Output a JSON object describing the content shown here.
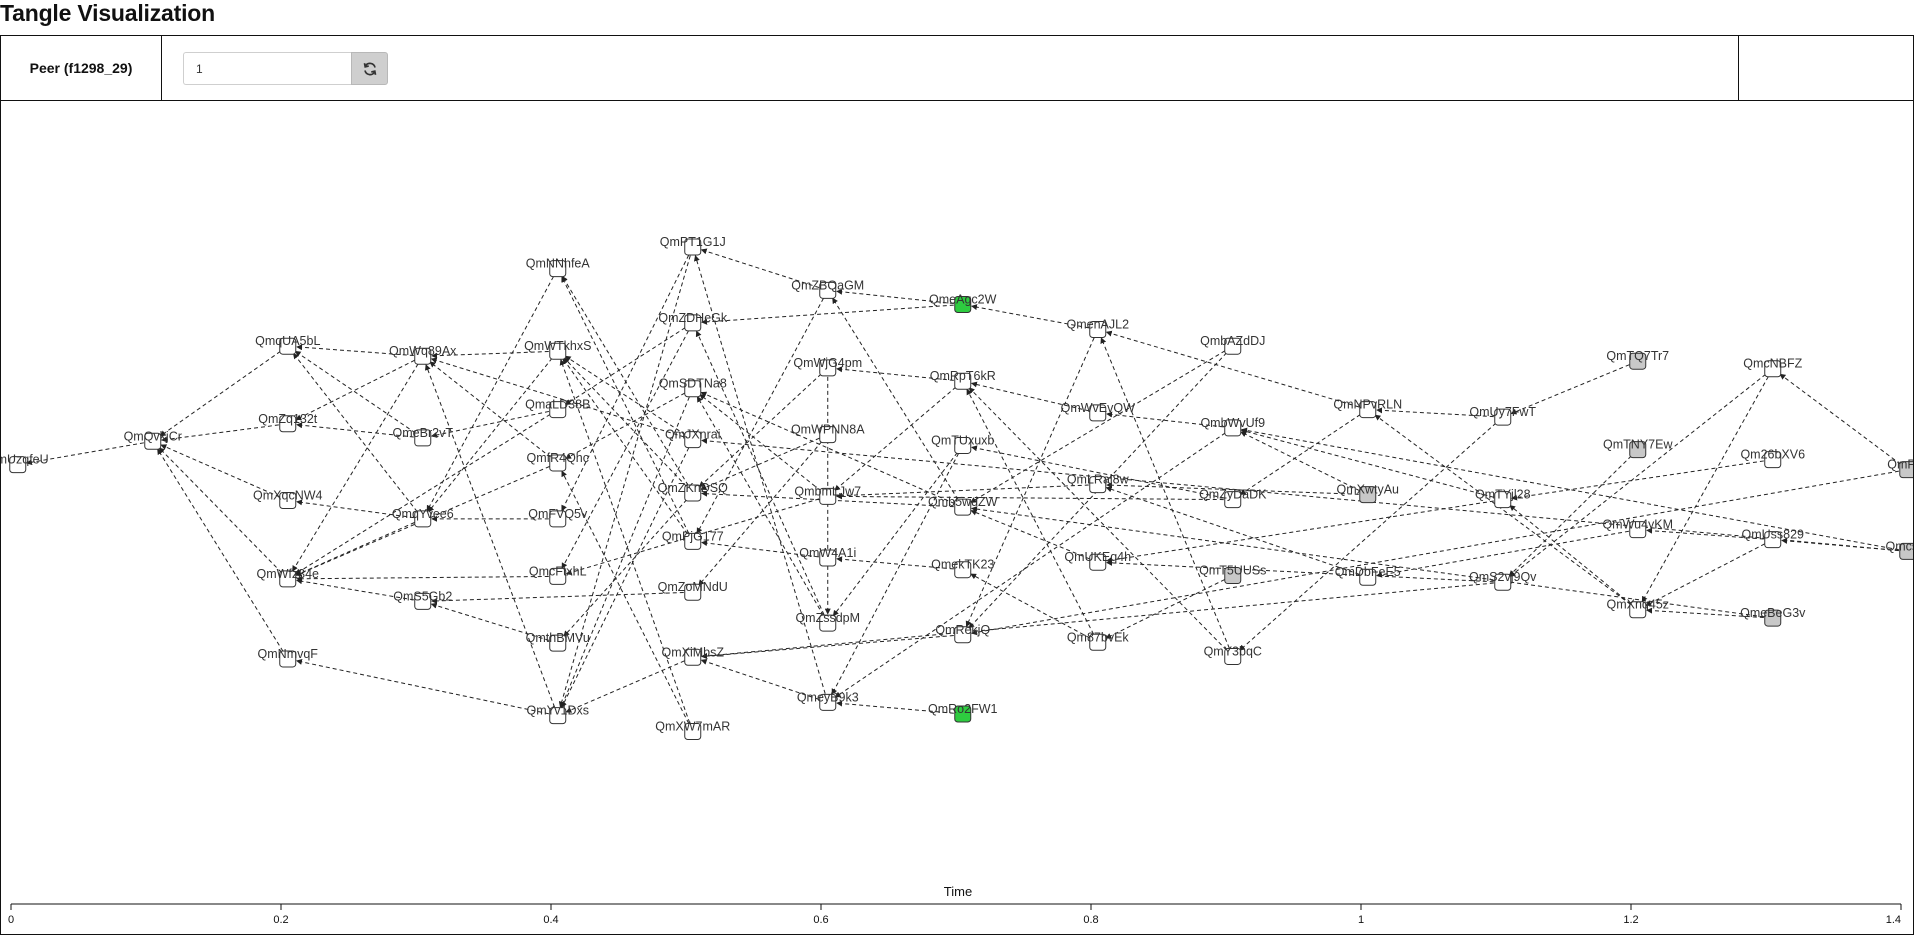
{
  "header": {
    "title": "Tangle Visualization"
  },
  "toolbar": {
    "peer_label": "Peer (f1298_29)",
    "peer_input_value": "1",
    "refresh_icon": "refresh-icon"
  },
  "colors": {
    "default_node": "#ffffff",
    "confirmed_node": "#2ecc40",
    "tip_node": "#c8c8c8",
    "edge": "#222222"
  },
  "axis": {
    "title": "Time",
    "range": [
      0,
      1.4
    ],
    "ticks": [
      "0",
      "0.2",
      "0.4",
      "0.6",
      "0.8",
      "1",
      "1.2",
      "1.4"
    ]
  },
  "chart_data": {
    "type": "network",
    "x_axis": "Time",
    "nodes": [
      {
        "id": "n1",
        "label": "QmUzqfeU",
        "time": 0.005,
        "y": 0.436,
        "fill": "white"
      },
      {
        "id": "n2",
        "label": "QmQvkjCr",
        "time": 0.105,
        "y": 0.408,
        "fill": "white"
      },
      {
        "id": "n3",
        "label": "QmqUA5bL",
        "time": 0.205,
        "y": 0.294,
        "fill": "white"
      },
      {
        "id": "n4",
        "label": "QmZq132t",
        "time": 0.205,
        "y": 0.387,
        "fill": "white"
      },
      {
        "id": "n5",
        "label": "QmXqcNW4",
        "time": 0.205,
        "y": 0.479,
        "fill": "white"
      },
      {
        "id": "n6",
        "label": "QmWfz34e",
        "time": 0.205,
        "y": 0.573,
        "fill": "white"
      },
      {
        "id": "n7",
        "label": "QmNmvqF",
        "time": 0.205,
        "y": 0.669,
        "fill": "white"
      },
      {
        "id": "n8",
        "label": "QmWq89Ax",
        "time": 0.305,
        "y": 0.306,
        "fill": "white"
      },
      {
        "id": "n9",
        "label": "QmeBr2vT",
        "time": 0.305,
        "y": 0.404,
        "fill": "white"
      },
      {
        "id": "n10",
        "label": "QmqYvee6",
        "time": 0.305,
        "y": 0.501,
        "fill": "white"
      },
      {
        "id": "n11",
        "label": "QmS5Gb2",
        "time": 0.305,
        "y": 0.6,
        "fill": "white"
      },
      {
        "id": "n12",
        "label": "QmNNhfeA",
        "time": 0.405,
        "y": 0.201,
        "fill": "white"
      },
      {
        "id": "n13",
        "label": "QmWTkhxS",
        "time": 0.405,
        "y": 0.3,
        "fill": "white"
      },
      {
        "id": "n14",
        "label": "QmaLD38B",
        "time": 0.405,
        "y": 0.37,
        "fill": "white"
      },
      {
        "id": "n15",
        "label": "QmfR4Qhc",
        "time": 0.405,
        "y": 0.434,
        "fill": "white"
      },
      {
        "id": "n16",
        "label": "QmFVQ5v",
        "time": 0.405,
        "y": 0.501,
        "fill": "white"
      },
      {
        "id": "n17",
        "label": "QmcFtxhL",
        "time": 0.405,
        "y": 0.57,
        "fill": "white"
      },
      {
        "id": "n18",
        "label": "QmthBMVu",
        "time": 0.405,
        "y": 0.65,
        "fill": "white"
      },
      {
        "id": "n19",
        "label": "QmYv1Dxs",
        "time": 0.405,
        "y": 0.737,
        "fill": "white"
      },
      {
        "id": "n20",
        "label": "QmPT1G1J",
        "time": 0.505,
        "y": 0.175,
        "fill": "white"
      },
      {
        "id": "n21",
        "label": "QmZDHeGk",
        "time": 0.505,
        "y": 0.266,
        "fill": "white"
      },
      {
        "id": "n22",
        "label": "QmSDTNa8",
        "time": 0.505,
        "y": 0.345,
        "fill": "white"
      },
      {
        "id": "n23",
        "label": "QmJXnrai",
        "time": 0.505,
        "y": 0.406,
        "fill": "white"
      },
      {
        "id": "n24",
        "label": "QmZKnDSQ",
        "time": 0.505,
        "y": 0.47,
        "fill": "white"
      },
      {
        "id": "n25",
        "label": "QmPjG177",
        "time": 0.505,
        "y": 0.528,
        "fill": "white"
      },
      {
        "id": "n26",
        "label": "QmZoMNdU",
        "time": 0.505,
        "y": 0.589,
        "fill": "white"
      },
      {
        "id": "n27",
        "label": "QmXiMbsZ",
        "time": 0.505,
        "y": 0.667,
        "fill": "white"
      },
      {
        "id": "n28",
        "label": "QmXW7mAR",
        "time": 0.505,
        "y": 0.756,
        "fill": "white"
      },
      {
        "id": "n29",
        "label": "QmZBQaGM",
        "time": 0.605,
        "y": 0.227,
        "fill": "white"
      },
      {
        "id": "n30",
        "label": "QmWjG4pm",
        "time": 0.605,
        "y": 0.32,
        "fill": "white"
      },
      {
        "id": "n31",
        "label": "QmWPNN8A",
        "time": 0.605,
        "y": 0.4,
        "fill": "white"
      },
      {
        "id": "n32",
        "label": "QmbmLJw7",
        "time": 0.605,
        "y": 0.474,
        "fill": "white"
      },
      {
        "id": "n33",
        "label": "QmW4A1i",
        "time": 0.605,
        "y": 0.548,
        "fill": "white"
      },
      {
        "id": "n34",
        "label": "QmZssdpM",
        "time": 0.605,
        "y": 0.626,
        "fill": "white"
      },
      {
        "id": "n35",
        "label": "QmeyB9k3",
        "time": 0.605,
        "y": 0.721,
        "fill": "white"
      },
      {
        "id": "n36",
        "label": "QmeAgc2W",
        "time": 0.705,
        "y": 0.244,
        "fill": "green"
      },
      {
        "id": "n37",
        "label": "QmRpT6kR",
        "time": 0.705,
        "y": 0.336,
        "fill": "white"
      },
      {
        "id": "n38",
        "label": "QmTUxuxb",
        "time": 0.705,
        "y": 0.413,
        "fill": "white"
      },
      {
        "id": "n39",
        "label": "Qmb5wdZW",
        "time": 0.705,
        "y": 0.487,
        "fill": "white"
      },
      {
        "id": "n40",
        "label": "QmekTK23",
        "time": 0.705,
        "y": 0.562,
        "fill": "white"
      },
      {
        "id": "n41",
        "label": "QmRekjQ",
        "time": 0.705,
        "y": 0.64,
        "fill": "white"
      },
      {
        "id": "n42",
        "label": "QmRo2FW1",
        "time": 0.705,
        "y": 0.735,
        "fill": "green"
      },
      {
        "id": "n43",
        "label": "QmenAJL2",
        "time": 0.805,
        "y": 0.274,
        "fill": "white"
      },
      {
        "id": "n44",
        "label": "QmWvEvQW",
        "time": 0.805,
        "y": 0.374,
        "fill": "white"
      },
      {
        "id": "n45",
        "label": "QmLRaj8w",
        "time": 0.805,
        "y": 0.46,
        "fill": "white"
      },
      {
        "id": "n46",
        "label": "QmUKEq4h",
        "time": 0.805,
        "y": 0.553,
        "fill": "white"
      },
      {
        "id": "n47",
        "label": "Qm87bvEk",
        "time": 0.805,
        "y": 0.649,
        "fill": "white"
      },
      {
        "id": "n48",
        "label": "QmbAZdDJ",
        "time": 0.905,
        "y": 0.294,
        "fill": "white"
      },
      {
        "id": "n49",
        "label": "QmbWvUf9",
        "time": 0.905,
        "y": 0.392,
        "fill": "white"
      },
      {
        "id": "n50",
        "label": "QmZyDaDK",
        "time": 0.905,
        "y": 0.478,
        "fill": "white"
      },
      {
        "id": "n51",
        "label": "QmT5UUSs",
        "time": 0.905,
        "y": 0.569,
        "fill": "gray"
      },
      {
        "id": "n52",
        "label": "QmY3bqC",
        "time": 0.905,
        "y": 0.666,
        "fill": "white"
      },
      {
        "id": "n53",
        "label": "QmNPvRLN",
        "time": 1.005,
        "y": 0.37,
        "fill": "white"
      },
      {
        "id": "n54",
        "label": "QmXwtyAu",
        "time": 1.005,
        "y": 0.472,
        "fill": "gray"
      },
      {
        "id": "n55",
        "label": "QmDbFeE5",
        "time": 1.005,
        "y": 0.571,
        "fill": "white"
      },
      {
        "id": "n56",
        "label": "QmUy7FwT",
        "time": 1.105,
        "y": 0.379,
        "fill": "white"
      },
      {
        "id": "n57",
        "label": "QmTYjl28",
        "time": 1.105,
        "y": 0.478,
        "fill": "white"
      },
      {
        "id": "n58",
        "label": "QmS2vj9Qv",
        "time": 1.105,
        "y": 0.577,
        "fill": "white"
      },
      {
        "id": "n59",
        "label": "QmTQ7Tr7",
        "time": 1.205,
        "y": 0.312,
        "fill": "gray"
      },
      {
        "id": "n60",
        "label": "QmTNY7Ew",
        "time": 1.205,
        "y": 0.418,
        "fill": "gray"
      },
      {
        "id": "n61",
        "label": "QmWu4yKM",
        "time": 1.205,
        "y": 0.514,
        "fill": "white"
      },
      {
        "id": "n62",
        "label": "QmXnq45z",
        "time": 1.205,
        "y": 0.61,
        "fill": "white"
      },
      {
        "id": "n63",
        "label": "QmcNBFZ",
        "time": 1.305,
        "y": 0.321,
        "fill": "white"
      },
      {
        "id": "n64",
        "label": "Qm26bXV6",
        "time": 1.305,
        "y": 0.43,
        "fill": "white"
      },
      {
        "id": "n65",
        "label": "QmUss829",
        "time": 1.305,
        "y": 0.526,
        "fill": "white"
      },
      {
        "id": "n66",
        "label": "QmeBeG3v",
        "time": 1.305,
        "y": 0.62,
        "fill": "gray"
      },
      {
        "id": "n67",
        "label": "QmPTs",
        "time": 1.405,
        "y": 0.442,
        "fill": "gray"
      },
      {
        "id": "n68",
        "label": "QmcsCi",
        "time": 1.405,
        "y": 0.54,
        "fill": "gray"
      }
    ],
    "edges": [
      [
        "n2",
        "n1"
      ],
      [
        "n3",
        "n2"
      ],
      [
        "n4",
        "n2"
      ],
      [
        "n5",
        "n2"
      ],
      [
        "n6",
        "n2"
      ],
      [
        "n7",
        "n2"
      ],
      [
        "n8",
        "n3"
      ],
      [
        "n8",
        "n4"
      ],
      [
        "n8",
        "n6"
      ],
      [
        "n9",
        "n4"
      ],
      [
        "n9",
        "n3"
      ],
      [
        "n10",
        "n5"
      ],
      [
        "n10",
        "n6"
      ],
      [
        "n10",
        "n3"
      ],
      [
        "n11",
        "n6"
      ],
      [
        "n12",
        "n10"
      ],
      [
        "n13",
        "n8"
      ],
      [
        "n13",
        "n10"
      ],
      [
        "n14",
        "n9"
      ],
      [
        "n14",
        "n6"
      ],
      [
        "n15",
        "n8"
      ],
      [
        "n15",
        "n6"
      ],
      [
        "n16",
        "n10"
      ],
      [
        "n17",
        "n6"
      ],
      [
        "n18",
        "n11"
      ],
      [
        "n19",
        "n7"
      ],
      [
        "n19",
        "n8"
      ],
      [
        "n20",
        "n16"
      ],
      [
        "n20",
        "n19"
      ],
      [
        "n21",
        "n17"
      ],
      [
        "n21",
        "n14"
      ],
      [
        "n22",
        "n15"
      ],
      [
        "n22",
        "n19"
      ],
      [
        "n23",
        "n13"
      ],
      [
        "n23",
        "n8"
      ],
      [
        "n24",
        "n13"
      ],
      [
        "n24",
        "n12"
      ],
      [
        "n25",
        "n13"
      ],
      [
        "n25",
        "n12"
      ],
      [
        "n26",
        "n11"
      ],
      [
        "n27",
        "n19"
      ],
      [
        "n28",
        "n15"
      ],
      [
        "n28",
        "n13"
      ],
      [
        "n24",
        "n18"
      ],
      [
        "n23",
        "n19"
      ],
      [
        "n29",
        "n20"
      ],
      [
        "n29",
        "n25"
      ],
      [
        "n30",
        "n24"
      ],
      [
        "n30",
        "n34"
      ],
      [
        "n31",
        "n24"
      ],
      [
        "n31",
        "n26"
      ],
      [
        "n32",
        "n22"
      ],
      [
        "n32",
        "n17"
      ],
      [
        "n33",
        "n25"
      ],
      [
        "n34",
        "n22"
      ],
      [
        "n34",
        "n21"
      ],
      [
        "n35",
        "n27"
      ],
      [
        "n35",
        "n20"
      ],
      [
        "n36",
        "n21"
      ],
      [
        "n36",
        "n29"
      ],
      [
        "n37",
        "n30"
      ],
      [
        "n37",
        "n32"
      ],
      [
        "n38",
        "n34"
      ],
      [
        "n38",
        "n35"
      ],
      [
        "n39",
        "n22"
      ],
      [
        "n39",
        "n24"
      ],
      [
        "n40",
        "n33"
      ],
      [
        "n41",
        "n27"
      ],
      [
        "n42",
        "n35"
      ],
      [
        "n39",
        "n29"
      ],
      [
        "n43",
        "n36"
      ],
      [
        "n43",
        "n41"
      ],
      [
        "n44",
        "n37"
      ],
      [
        "n45",
        "n32"
      ],
      [
        "n46",
        "n39"
      ],
      [
        "n47",
        "n37"
      ],
      [
        "n47",
        "n40"
      ],
      [
        "n48",
        "n39"
      ],
      [
        "n48",
        "n41"
      ],
      [
        "n49",
        "n44"
      ],
      [
        "n49",
        "n35"
      ],
      [
        "n50",
        "n38"
      ],
      [
        "n50",
        "n32"
      ],
      [
        "n51",
        "n47"
      ],
      [
        "n52",
        "n37"
      ],
      [
        "n52",
        "n43"
      ],
      [
        "n53",
        "n43"
      ],
      [
        "n53",
        "n50"
      ],
      [
        "n54",
        "n49"
      ],
      [
        "n54",
        "n45"
      ],
      [
        "n55",
        "n45"
      ],
      [
        "n56",
        "n53"
      ],
      [
        "n56",
        "n52"
      ],
      [
        "n57",
        "n49"
      ],
      [
        "n57",
        "n46"
      ],
      [
        "n58",
        "n46"
      ],
      [
        "n58",
        "n27"
      ],
      [
        "n59",
        "n56"
      ],
      [
        "n60",
        "n58"
      ],
      [
        "n61",
        "n55"
      ],
      [
        "n62",
        "n53"
      ],
      [
        "n62",
        "n57"
      ],
      [
        "n63",
        "n58"
      ],
      [
        "n63",
        "n62"
      ],
      [
        "n64",
        "n57"
      ],
      [
        "n65",
        "n62"
      ],
      [
        "n66",
        "n62"
      ],
      [
        "n66",
        "n39"
      ],
      [
        "n67",
        "n63"
      ],
      [
        "n67",
        "n41"
      ],
      [
        "n68",
        "n65"
      ],
      [
        "n68",
        "n49"
      ],
      [
        "n68",
        "n23"
      ],
      [
        "n65",
        "n61"
      ]
    ]
  }
}
